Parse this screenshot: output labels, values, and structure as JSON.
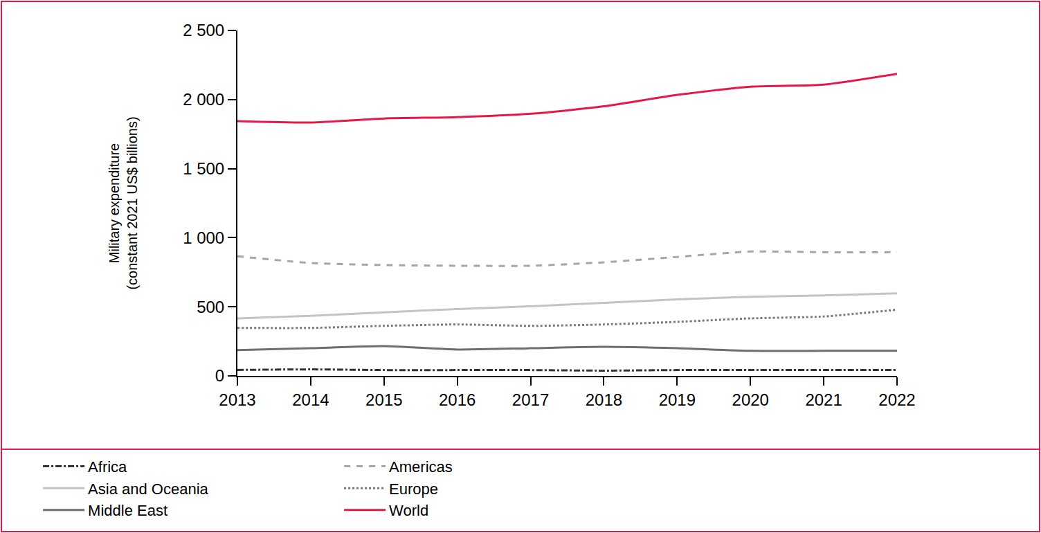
{
  "chart_data": {
    "type": "line",
    "y_label": "Military expenditure\n(constant 2021 US$ billions)",
    "categories": [
      "2013",
      "2014",
      "2015",
      "2016",
      "2017",
      "2018",
      "2019",
      "2020",
      "2021",
      "2022"
    ],
    "series": [
      {
        "name": "Africa",
        "color": "#333333",
        "line_style": "dashdot",
        "values": [
          43,
          47,
          42,
          42,
          42,
          38,
          42,
          43,
          43,
          43
        ]
      },
      {
        "name": "Americas",
        "color": "#a6a6a6",
        "line_style": "dash",
        "values": [
          866,
          817,
          802,
          797,
          797,
          822,
          861,
          900,
          895,
          895
        ]
      },
      {
        "name": "Asia and Oceania",
        "color": "#c4c4c4",
        "line_style": "solid",
        "values": [
          416,
          435,
          460,
          484,
          504,
          528,
          553,
          572,
          582,
          597
        ]
      },
      {
        "name": "Europe",
        "color": "#7a7a7a",
        "line_style": "dot",
        "values": [
          347,
          347,
          362,
          372,
          362,
          372,
          391,
          416,
          430,
          479
        ]
      },
      {
        "name": "Middle East",
        "color": "#6e6e6e",
        "line_style": "solid",
        "values": [
          186,
          200,
          215,
          191,
          200,
          210,
          200,
          181,
          181,
          181
        ]
      },
      {
        "name": "World",
        "color": "#e4194a",
        "line_style": "solid",
        "values": [
          1844,
          1834,
          1863,
          1873,
          1897,
          1951,
          2034,
          2093,
          2108,
          2186
        ]
      }
    ],
    "ylim": [
      0,
      2500
    ],
    "yticks": [
      0,
      500,
      {
        "value": 1000,
        "label": "1 000"
      },
      {
        "value": 1500,
        "label": "1 500"
      },
      {
        "value": 2000,
        "label": "2 000"
      },
      {
        "value": 2500,
        "label": "2 500"
      }
    ],
    "grid": false,
    "legend": "bottom"
  }
}
